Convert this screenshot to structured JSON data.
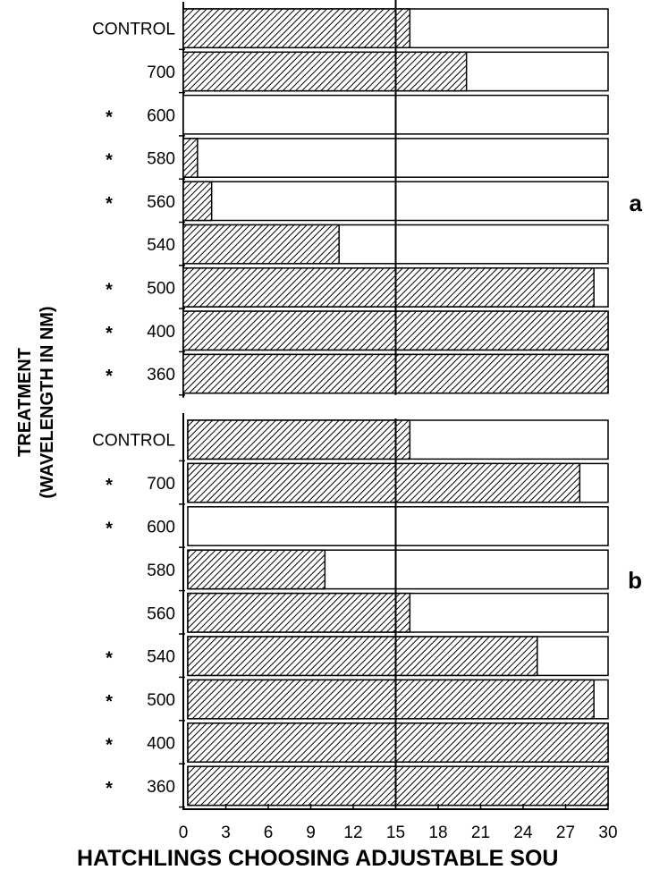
{
  "chart_data": {
    "type": "bar",
    "orientation": "horizontal",
    "stacked": true,
    "xlabel": "HATCHLINGS CHOOSING ADJUSTABLE SOU",
    "ylabel_lines": [
      "TREATMENT",
      "(WAVELENGTH IN NM)"
    ],
    "xlim": [
      0,
      30
    ],
    "xticks": [
      "0",
      "3",
      "6",
      "9",
      "12",
      "15",
      "18",
      "21",
      "24",
      "27",
      "30"
    ],
    "reference_line": 15,
    "legend": "none",
    "grid": false,
    "colors": {
      "hatched": "#000000",
      "open": "#ffffff",
      "border": "#000000"
    },
    "panels": [
      {
        "label": "a",
        "categories": [
          "CONTROL",
          "700",
          "600",
          "580",
          "560",
          "540",
          "500",
          "400",
          "360"
        ],
        "significant": [
          "",
          "",
          "*",
          "*",
          "*",
          "",
          "*",
          "*",
          "*"
        ],
        "values": [
          16,
          20,
          0,
          1,
          2,
          11,
          29,
          30,
          30
        ]
      },
      {
        "label": "b",
        "categories": [
          "CONTROL",
          "700",
          "600",
          "580",
          "560",
          "540",
          "500",
          "400",
          "360"
        ],
        "significant": [
          "",
          "*",
          "*",
          "",
          "",
          "*",
          "*",
          "*",
          "*"
        ],
        "values": [
          16,
          28,
          0,
          10,
          16,
          25,
          29,
          30,
          30
        ]
      }
    ]
  }
}
